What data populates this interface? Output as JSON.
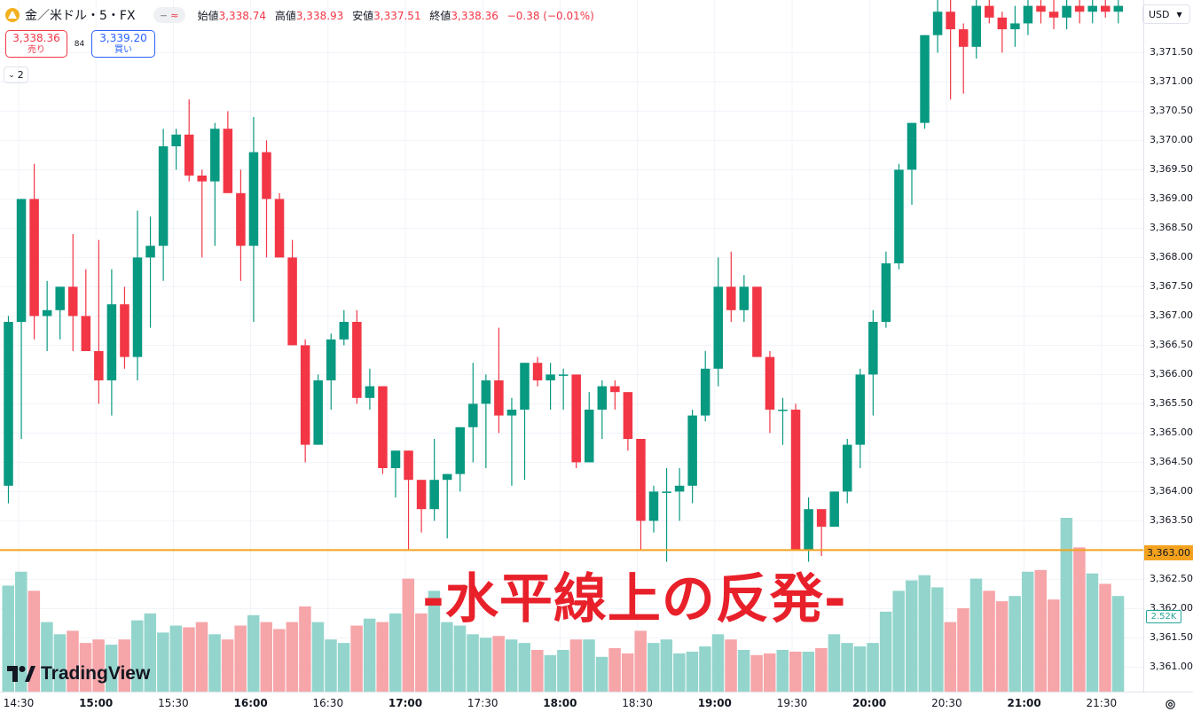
{
  "header": {
    "symbol": "金／米ドル・5・FX",
    "open_label": "始値",
    "open": "3,338.74",
    "high_label": "高値",
    "high": "3,338.93",
    "low_label": "安値",
    "low": "3,337.51",
    "close_label": "終値",
    "close": "3,338.36",
    "change": "−0.38 (−0.01%)"
  },
  "trade": {
    "sell_price": "3,338.36",
    "sell_label": "売り",
    "spread": "84",
    "buy_price": "3,339.20",
    "buy_label": "買い"
  },
  "indicators_count": "2",
  "currency": "USD",
  "price_line_label": "3,363.00",
  "volume_label": "2.52K",
  "annotation": "-水平線上の反発-",
  "logo_text": "TradingView",
  "colors": {
    "up": "#089981",
    "down": "#f23645",
    "line": "#f4a21e",
    "vol_up": "#93d5cc",
    "vol_down": "#f6a5a9",
    "annotation": "#e8202a"
  },
  "chart_data": {
    "type": "candlestick",
    "interval": "5",
    "x_tick_labels": [
      "14:30",
      "15:00",
      "15:30",
      "16:00",
      "16:30",
      "17:00",
      "17:30",
      "18:00",
      "18:30",
      "19:00",
      "19:30",
      "20:00",
      "20:30",
      "21:00",
      "21:30"
    ],
    "x_tick_bold": [
      "15:00",
      "16:00",
      "17:00",
      "18:00",
      "19:00",
      "20:00",
      "21:00"
    ],
    "y_tick_labels": [
      "3,371.50",
      "3,371.00",
      "3,370.50",
      "3,370.00",
      "3,369.50",
      "3,369.00",
      "3,368.50",
      "3,368.00",
      "3,367.50",
      "3,367.00",
      "3,366.50",
      "3,366.00",
      "3,365.50",
      "3,365.00",
      "3,364.50",
      "3,364.00",
      "3,363.50",
      "3,363.00",
      "3,362.50",
      "3,362.00",
      "3,361.50",
      "3,361.00"
    ],
    "ylim": [
      3360.9,
      3372.4
    ],
    "horizontal_line": 3363.0,
    "candles": [
      {
        "o": 3364.1,
        "h": 3367.0,
        "l": 3363.8,
        "c": 3366.9,
        "v": 0.61
      },
      {
        "o": 3366.9,
        "h": 3369.0,
        "l": 3364.9,
        "c": 3369.0,
        "v": 0.69
      },
      {
        "o": 3369.0,
        "h": 3369.6,
        "l": 3366.6,
        "c": 3367.0,
        "v": 0.58
      },
      {
        "o": 3367.0,
        "h": 3367.6,
        "l": 3366.4,
        "c": 3367.1,
        "v": 0.4
      },
      {
        "o": 3367.1,
        "h": 3367.5,
        "l": 3366.6,
        "c": 3367.5,
        "v": 0.33
      },
      {
        "o": 3367.5,
        "h": 3368.4,
        "l": 3366.4,
        "c": 3367.0,
        "v": 0.35
      },
      {
        "o": 3367.0,
        "h": 3367.8,
        "l": 3366.4,
        "c": 3366.4,
        "v": 0.28
      },
      {
        "o": 3366.4,
        "h": 3368.3,
        "l": 3365.5,
        "c": 3365.9,
        "v": 0.3
      },
      {
        "o": 3365.9,
        "h": 3367.8,
        "l": 3365.3,
        "c": 3367.2,
        "v": 0.27
      },
      {
        "o": 3367.2,
        "h": 3367.5,
        "l": 3366.1,
        "c": 3366.3,
        "v": 0.3
      },
      {
        "o": 3366.3,
        "h": 3368.8,
        "l": 3365.9,
        "c": 3368.0,
        "v": 0.41
      },
      {
        "o": 3368.0,
        "h": 3368.7,
        "l": 3366.8,
        "c": 3368.2,
        "v": 0.45
      },
      {
        "o": 3368.2,
        "h": 3370.2,
        "l": 3367.6,
        "c": 3369.9,
        "v": 0.34
      },
      {
        "o": 3369.9,
        "h": 3370.2,
        "l": 3369.5,
        "c": 3370.1,
        "v": 0.38
      },
      {
        "o": 3370.1,
        "h": 3370.7,
        "l": 3369.3,
        "c": 3369.4,
        "v": 0.37
      },
      {
        "o": 3369.4,
        "h": 3369.5,
        "l": 3368.0,
        "c": 3369.3,
        "v": 0.4
      },
      {
        "o": 3369.3,
        "h": 3370.3,
        "l": 3368.2,
        "c": 3370.2,
        "v": 0.33
      },
      {
        "o": 3370.2,
        "h": 3370.5,
        "l": 3369.1,
        "c": 3369.1,
        "v": 0.3
      },
      {
        "o": 3369.1,
        "h": 3369.5,
        "l": 3367.6,
        "c": 3368.2,
        "v": 0.38
      },
      {
        "o": 3368.2,
        "h": 3370.4,
        "l": 3366.9,
        "c": 3369.8,
        "v": 0.44
      },
      {
        "o": 3369.8,
        "h": 3370.0,
        "l": 3368.0,
        "c": 3369.0,
        "v": 0.4
      },
      {
        "o": 3369.0,
        "h": 3369.1,
        "l": 3368.0,
        "c": 3368.0,
        "v": 0.36
      },
      {
        "o": 3368.0,
        "h": 3368.3,
        "l": 3366.5,
        "c": 3366.5,
        "v": 0.4
      },
      {
        "o": 3366.5,
        "h": 3366.6,
        "l": 3364.5,
        "c": 3364.8,
        "v": 0.49
      },
      {
        "o": 3364.8,
        "h": 3366.0,
        "l": 3364.8,
        "c": 3365.9,
        "v": 0.4
      },
      {
        "o": 3365.9,
        "h": 3366.7,
        "l": 3365.4,
        "c": 3366.6,
        "v": 0.3
      },
      {
        "o": 3366.6,
        "h": 3367.1,
        "l": 3366.5,
        "c": 3366.9,
        "v": 0.28
      },
      {
        "o": 3366.9,
        "h": 3367.1,
        "l": 3365.5,
        "c": 3365.6,
        "v": 0.38
      },
      {
        "o": 3365.6,
        "h": 3366.1,
        "l": 3365.4,
        "c": 3365.8,
        "v": 0.42
      },
      {
        "o": 3365.8,
        "h": 3365.8,
        "l": 3364.3,
        "c": 3364.4,
        "v": 0.4
      },
      {
        "o": 3364.4,
        "h": 3364.7,
        "l": 3363.9,
        "c": 3364.7,
        "v": 0.45
      },
      {
        "o": 3364.7,
        "h": 3364.7,
        "l": 3363.0,
        "c": 3364.2,
        "v": 0.65
      },
      {
        "o": 3364.2,
        "h": 3364.2,
        "l": 3363.3,
        "c": 3363.7,
        "v": 0.45
      },
      {
        "o": 3363.7,
        "h": 3364.9,
        "l": 3363.5,
        "c": 3364.2,
        "v": 0.58
      },
      {
        "o": 3364.2,
        "h": 3364.3,
        "l": 3363.2,
        "c": 3364.3,
        "v": 0.4
      },
      {
        "o": 3364.3,
        "h": 3365.1,
        "l": 3364.0,
        "c": 3365.1,
        "v": 0.38
      },
      {
        "o": 3365.1,
        "h": 3366.2,
        "l": 3364.5,
        "c": 3365.5,
        "v": 0.33
      },
      {
        "o": 3365.5,
        "h": 3366.0,
        "l": 3364.4,
        "c": 3365.9,
        "v": 0.31
      },
      {
        "o": 3365.9,
        "h": 3366.8,
        "l": 3365.0,
        "c": 3365.3,
        "v": 0.32
      },
      {
        "o": 3365.3,
        "h": 3365.6,
        "l": 3364.1,
        "c": 3365.4,
        "v": 0.3
      },
      {
        "o": 3365.4,
        "h": 3366.2,
        "l": 3364.2,
        "c": 3366.2,
        "v": 0.28
      },
      {
        "o": 3366.2,
        "h": 3366.3,
        "l": 3365.8,
        "c": 3365.9,
        "v": 0.24
      },
      {
        "o": 3365.9,
        "h": 3366.2,
        "l": 3365.4,
        "c": 3366.0,
        "v": 0.21
      },
      {
        "o": 3366.0,
        "h": 3366.1,
        "l": 3365.4,
        "c": 3366.0,
        "v": 0.24
      },
      {
        "o": 3366.0,
        "h": 3366.0,
        "l": 3364.4,
        "c": 3364.5,
        "v": 0.3
      },
      {
        "o": 3364.5,
        "h": 3365.7,
        "l": 3364.5,
        "c": 3365.4,
        "v": 0.3
      },
      {
        "o": 3365.4,
        "h": 3365.9,
        "l": 3364.9,
        "c": 3365.8,
        "v": 0.2
      },
      {
        "o": 3365.8,
        "h": 3365.9,
        "l": 3365.4,
        "c": 3365.7,
        "v": 0.25
      },
      {
        "o": 3365.7,
        "h": 3365.7,
        "l": 3364.7,
        "c": 3364.9,
        "v": 0.22
      },
      {
        "o": 3364.9,
        "h": 3364.9,
        "l": 3363.0,
        "c": 3363.5,
        "v": 0.35
      },
      {
        "o": 3363.5,
        "h": 3364.1,
        "l": 3363.3,
        "c": 3364.0,
        "v": 0.28
      },
      {
        "o": 3364.0,
        "h": 3364.4,
        "l": 3362.8,
        "c": 3364.0,
        "v": 0.3
      },
      {
        "o": 3364.0,
        "h": 3364.4,
        "l": 3363.5,
        "c": 3364.1,
        "v": 0.22
      },
      {
        "o": 3364.1,
        "h": 3365.4,
        "l": 3363.8,
        "c": 3365.3,
        "v": 0.23
      },
      {
        "o": 3365.3,
        "h": 3366.4,
        "l": 3365.2,
        "c": 3366.1,
        "v": 0.26
      },
      {
        "o": 3366.1,
        "h": 3368.0,
        "l": 3365.8,
        "c": 3367.5,
        "v": 0.33
      },
      {
        "o": 3367.5,
        "h": 3368.1,
        "l": 3366.9,
        "c": 3367.1,
        "v": 0.3
      },
      {
        "o": 3367.1,
        "h": 3367.7,
        "l": 3366.9,
        "c": 3367.5,
        "v": 0.24
      },
      {
        "o": 3367.5,
        "h": 3367.5,
        "l": 3366.3,
        "c": 3366.3,
        "v": 0.21
      },
      {
        "o": 3366.3,
        "h": 3366.4,
        "l": 3365.0,
        "c": 3365.4,
        "v": 0.22
      },
      {
        "o": 3365.4,
        "h": 3365.6,
        "l": 3364.8,
        "c": 3365.4,
        "v": 0.24
      },
      {
        "o": 3365.4,
        "h": 3365.5,
        "l": 3363.0,
        "c": 3363.0,
        "v": 0.23
      },
      {
        "o": 3363.0,
        "h": 3363.9,
        "l": 3362.8,
        "c": 3363.7,
        "v": 0.23
      },
      {
        "o": 3363.7,
        "h": 3363.7,
        "l": 3362.9,
        "c": 3363.4,
        "v": 0.25
      },
      {
        "o": 3363.4,
        "h": 3364.0,
        "l": 3363.4,
        "c": 3364.0,
        "v": 0.33
      },
      {
        "o": 3364.0,
        "h": 3364.9,
        "l": 3363.8,
        "c": 3364.8,
        "v": 0.28
      },
      {
        "o": 3364.8,
        "h": 3366.1,
        "l": 3364.4,
        "c": 3366.0,
        "v": 0.26
      },
      {
        "o": 3366.0,
        "h": 3367.1,
        "l": 3365.3,
        "c": 3366.9,
        "v": 0.28
      },
      {
        "o": 3366.9,
        "h": 3368.1,
        "l": 3366.8,
        "c": 3367.9,
        "v": 0.46
      },
      {
        "o": 3367.9,
        "h": 3369.6,
        "l": 3367.8,
        "c": 3369.5,
        "v": 0.58
      },
      {
        "o": 3369.5,
        "h": 3370.3,
        "l": 3368.9,
        "c": 3370.3,
        "v": 0.64
      },
      {
        "o": 3370.3,
        "h": 3371.8,
        "l": 3370.2,
        "c": 3371.8,
        "v": 0.67
      },
      {
        "o": 3371.8,
        "h": 3372.4,
        "l": 3371.5,
        "c": 3372.2,
        "v": 0.6
      },
      {
        "o": 3372.2,
        "h": 3372.4,
        "l": 3370.7,
        "c": 3371.9,
        "v": 0.4
      },
      {
        "o": 3371.9,
        "h": 3372.0,
        "l": 3370.8,
        "c": 3371.6,
        "v": 0.48
      },
      {
        "o": 3371.6,
        "h": 3372.4,
        "l": 3371.4,
        "c": 3372.3,
        "v": 0.65
      },
      {
        "o": 3372.3,
        "h": 3372.4,
        "l": 3372.0,
        "c": 3372.1,
        "v": 0.58
      },
      {
        "o": 3372.1,
        "h": 3372.2,
        "l": 3371.5,
        "c": 3371.9,
        "v": 0.52
      },
      {
        "o": 3371.9,
        "h": 3372.3,
        "l": 3371.6,
        "c": 3372.0,
        "v": 0.55
      },
      {
        "o": 3372.0,
        "h": 3372.4,
        "l": 3371.8,
        "c": 3372.3,
        "v": 0.69
      },
      {
        "o": 3372.3,
        "h": 3372.4,
        "l": 3372.0,
        "c": 3372.2,
        "v": 0.7
      },
      {
        "o": 3372.2,
        "h": 3372.4,
        "l": 3371.9,
        "c": 3372.1,
        "v": 0.53
      },
      {
        "o": 3372.1,
        "h": 3372.4,
        "l": 3371.9,
        "c": 3372.3,
        "v": 1.0
      },
      {
        "o": 3372.3,
        "h": 3372.4,
        "l": 3372.0,
        "c": 3372.2,
        "v": 0.83
      },
      {
        "o": 3372.2,
        "h": 3372.4,
        "l": 3372.0,
        "c": 3372.3,
        "v": 0.68
      },
      {
        "o": 3372.3,
        "h": 3372.4,
        "l": 3372.1,
        "c": 3372.2,
        "v": 0.62
      },
      {
        "o": 3372.2,
        "h": 3372.4,
        "l": 3372.0,
        "c": 3372.3,
        "v": 0.55
      }
    ]
  }
}
